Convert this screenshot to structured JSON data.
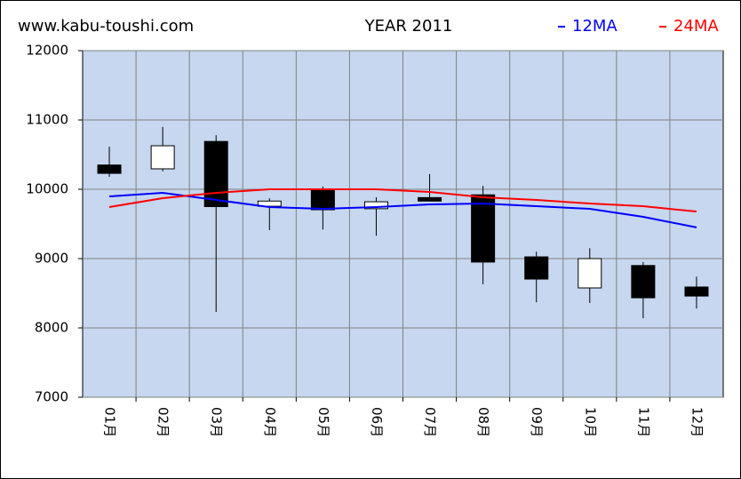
{
  "chart_data": {
    "type": "candlestick",
    "site": "www.kabu-toushi.com",
    "title": "YEAR 2011",
    "categories": [
      "01月",
      "02月",
      "03月",
      "04月",
      "05月",
      "06月",
      "07月",
      "08月",
      "09月",
      "10月",
      "11月",
      "12月"
    ],
    "open": [
      10350,
      10295,
      10690,
      9755,
      10000,
      9720,
      9880,
      9920,
      9025,
      8577,
      8900,
      8590
    ],
    "high": [
      10615,
      10900,
      10780,
      9870,
      10040,
      9885,
      10220,
      10050,
      9100,
      9150,
      8950,
      8740
    ],
    "low": [
      10180,
      10260,
      8230,
      9410,
      9420,
      9330,
      9830,
      8630,
      8370,
      8360,
      8140,
      8280
    ],
    "close": [
      10230,
      10628,
      9750,
      9830,
      9705,
      9820,
      9830,
      8950,
      8705,
      9000,
      8435,
      8460
    ],
    "up_color": "#ffffff",
    "down_color": "#000000",
    "series": [
      {
        "name": "12MA",
        "color": "#0000ff",
        "values": [
          9897,
          9949,
          9846,
          9744,
          9718,
          9744,
          9782,
          9795,
          9756,
          9718,
          9603,
          9450
        ]
      },
      {
        "name": "24MA",
        "color": "#ff0000",
        "values": [
          9744,
          9872,
          9949,
          10000,
          10000,
          10000,
          9962,
          9885,
          9846,
          9795,
          9756,
          9679
        ]
      }
    ],
    "ylim": [
      7000,
      12000
    ],
    "yticks": [
      7000,
      8000,
      9000,
      10000,
      11000,
      12000
    ],
    "grid": true,
    "plot_background": "#c6d7ef"
  }
}
